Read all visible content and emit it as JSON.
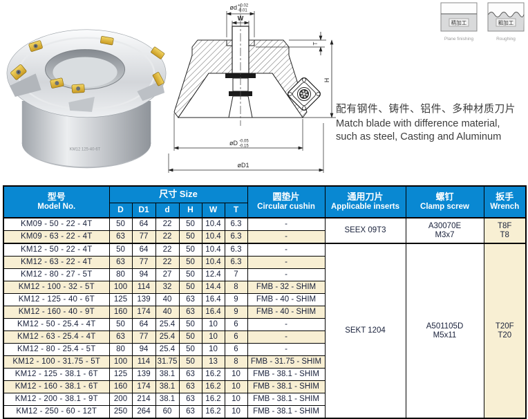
{
  "top": {
    "photo": {
      "engraving": "KM12 125-40-6T"
    },
    "drawing": {
      "dim_d": "ød",
      "dim_d_tol_up": "+0.02",
      "dim_d_tol_dn": "-0.01",
      "dim_w": "W",
      "dim_t": "T",
      "dim_h": "H",
      "dim_D": "øD",
      "dim_D_tol_up": "-0.05",
      "dim_D_tol_dn": "-0.15",
      "dim_D1": "øD1"
    },
    "description": {
      "line_zh": "配有钢件、铸件、铝件、多种材质刀片",
      "line_en1": "Match blade with difference material,",
      "line_en2": "such as steel, Casting and Aluminum"
    },
    "finish_icons": [
      {
        "label_zh": "精加工",
        "label_en": "Plane finishing"
      },
      {
        "label_zh": "粗加工",
        "label_en": "Roughing"
      }
    ]
  },
  "table": {
    "colors": {
      "header_bg": "#0988d2",
      "row_alt_bg": "#f8efd3",
      "border": "#000000",
      "text": "#18203a"
    },
    "headers": {
      "model_zh": "型号",
      "model_en": "Model No.",
      "size": "尺寸 Size",
      "size_cols": [
        "D",
        "D1",
        "d",
        "H",
        "W",
        "T"
      ],
      "cushion_zh": "圆垫片",
      "cushion_en": "Circular cushin",
      "inserts_zh": "通用刀片",
      "inserts_en": "Applicable inserts",
      "screw_zh": "螺钉",
      "screw_en": "Clamp screw",
      "wrench_zh": "扳手",
      "wrench_en": "Wrench"
    },
    "rows": [
      {
        "model": "KM09 - 50 - 22 - 4T",
        "size": [
          "50",
          "64",
          "22",
          "50",
          "10.4",
          "6.3"
        ],
        "cushion": "-",
        "shade": false,
        "merge": {
          "rowspan": 2,
          "inserts": "SEEX 09T3",
          "screw": [
            "A30070E",
            "M3x7"
          ],
          "wrench": [
            "T8F",
            "T8"
          ]
        }
      },
      {
        "model": "KM09 - 63 - 22 - 4T",
        "size": [
          "63",
          "77",
          "22",
          "50",
          "10.4",
          "6.3"
        ],
        "cushion": "-",
        "shade": true
      },
      {
        "model": "KM12 - 50 - 22 - 4T",
        "size": [
          "50",
          "64",
          "22",
          "50",
          "10.4",
          "6.3"
        ],
        "cushion": "-",
        "shade": false,
        "groupStart": true,
        "merge": {
          "rowspan": 14,
          "inserts": "SEKT 1204",
          "screw": [
            "A501105D",
            "M5x11"
          ],
          "wrench": [
            "T20F",
            "T20"
          ]
        }
      },
      {
        "model": "KM12 - 63 - 22 - 4T",
        "size": [
          "63",
          "77",
          "22",
          "50",
          "10.4",
          "6.3"
        ],
        "cushion": "-",
        "shade": true
      },
      {
        "model": "KM12 - 80 - 27 - 5T",
        "size": [
          "80",
          "94",
          "27",
          "50",
          "12.4",
          "7"
        ],
        "cushion": "-",
        "shade": false
      },
      {
        "model": "KM12 - 100 - 32 - 5T",
        "size": [
          "100",
          "114",
          "32",
          "50",
          "14.4",
          "8"
        ],
        "cushion": "FMB - 32 - SHIM",
        "shade": true
      },
      {
        "model": "KM12 - 125 - 40 - 6T",
        "size": [
          "125",
          "139",
          "40",
          "63",
          "16.4",
          "9"
        ],
        "cushion": "FMB - 40 - SHIM",
        "shade": false
      },
      {
        "model": "KM12 - 160 - 40 - 9T",
        "size": [
          "160",
          "174",
          "40",
          "63",
          "16.4",
          "9"
        ],
        "cushion": "FMB - 40 - SHIM",
        "shade": true
      },
      {
        "model": "KM12 - 50 - 25.4 - 4T",
        "size": [
          "50",
          "64",
          "25.4",
          "50",
          "10",
          "6"
        ],
        "cushion": "-",
        "shade": false
      },
      {
        "model": "KM12 - 63 - 25.4 - 4T",
        "size": [
          "63",
          "77",
          "25.4",
          "50",
          "10",
          "6"
        ],
        "cushion": "-",
        "shade": true
      },
      {
        "model": "KM12 - 80 - 25.4 - 5T",
        "size": [
          "80",
          "94",
          "25.4",
          "50",
          "10",
          "6"
        ],
        "cushion": "-",
        "shade": false
      },
      {
        "model": "KM12 - 100 - 31.75 - 5T",
        "size": [
          "100",
          "114",
          "31.75",
          "50",
          "13",
          "8"
        ],
        "cushion": "FMB - 31.75 - SHIM",
        "shade": true
      },
      {
        "model": "KM12 - 125 - 38.1 - 6T",
        "size": [
          "125",
          "139",
          "38.1",
          "63",
          "16.2",
          "10"
        ],
        "cushion": "FMB - 38.1 - SHIM",
        "shade": false
      },
      {
        "model": "KM12 - 160 - 38.1 - 6T",
        "size": [
          "160",
          "174",
          "38.1",
          "63",
          "16.2",
          "10"
        ],
        "cushion": "FMB - 38.1 - SHIM",
        "shade": true
      },
      {
        "model": "KM12 - 200 - 38.1 - 9T",
        "size": [
          "200",
          "214",
          "38.1",
          "63",
          "16.2",
          "10"
        ],
        "cushion": "FMB - 38.1 - SHIM",
        "shade": false
      },
      {
        "model": "KM12 - 250 - 60 - 12T",
        "size": [
          "250",
          "264",
          "60",
          "63",
          "16.2",
          "10"
        ],
        "cushion": "FMB - 38.1 - SHIM",
        "shade": false
      }
    ]
  }
}
